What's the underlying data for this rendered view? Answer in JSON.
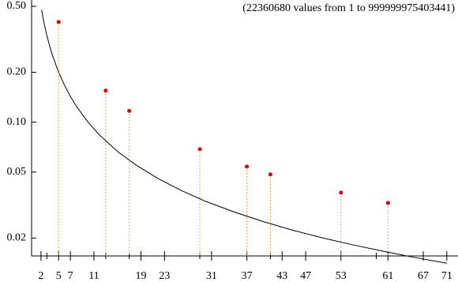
{
  "chart_data": {
    "type": "scatter",
    "annotation": "(22360680 values from  1 to   999999975403441)",
    "annotation_color": "#cc0000",
    "log_y": true,
    "xlim": [
      0.4,
      72.9
    ],
    "ylim": [
      0.0156,
      0.546
    ],
    "xticks": [
      2,
      5,
      7,
      11,
      19,
      23,
      31,
      37,
      43,
      47,
      53,
      61,
      67,
      71
    ],
    "xminor_ticks": [
      3,
      13,
      17,
      29,
      41,
      59
    ],
    "yticks": [
      {
        "value": 0.5,
        "label": "0.50"
      },
      {
        "value": 0.2,
        "label": "0.20"
      },
      {
        "value": 0.1,
        "label": "0.10"
      },
      0.05,
      0.02
    ],
    "points": {
      "color": "#dd0000",
      "drop_color": "#f0a050",
      "x": [
        5,
        13,
        17,
        29,
        37,
        41,
        53,
        61
      ],
      "values": [
        0.402,
        0.155,
        0.117,
        0.0687,
        0.054,
        0.0484,
        0.0376,
        0.0326
      ]
    },
    "curve": {
      "color": "#000000",
      "x": [
        2.1,
        2.5,
        3,
        3.5,
        4,
        5,
        6,
        7,
        8,
        10,
        12,
        15,
        18,
        22,
        26,
        30,
        35,
        40,
        45,
        50,
        55,
        60,
        65,
        71
      ],
      "values": [
        0.476,
        0.4,
        0.333,
        0.286,
        0.25,
        0.2,
        0.167,
        0.143,
        0.125,
        0.1,
        0.0833,
        0.0667,
        0.0556,
        0.0455,
        0.0385,
        0.0333,
        0.0286,
        0.025,
        0.0222,
        0.02,
        0.0182,
        0.0167,
        0.0154,
        0.0141
      ]
    }
  }
}
